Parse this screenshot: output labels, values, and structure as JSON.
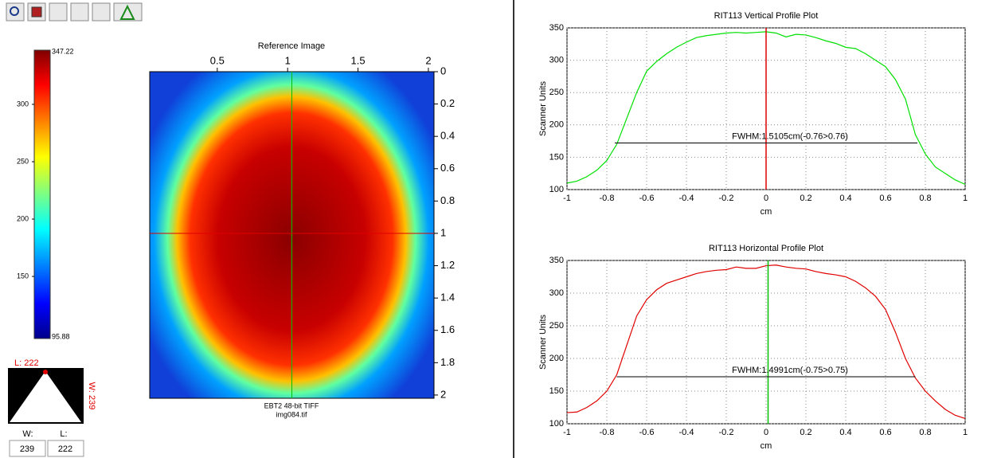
{
  "colorbar": {
    "lim": [
      95.88,
      347.22
    ],
    "ticks": [
      150,
      200,
      250,
      300
    ]
  },
  "window_level": {
    "level_label": "L: 222",
    "width_label": "W: 239",
    "w_caption": "W:",
    "l_caption": "L:",
    "w_value": "239",
    "l_value": "222"
  },
  "image": {
    "title": "Reference Image",
    "caption": "EBT2 48-bit TIFF",
    "filename": "img084.tif",
    "xlim": [
      0.02,
      2.04
    ],
    "ylim": [
      0,
      2.02
    ],
    "xticks": [
      0.5,
      1,
      1.5,
      2
    ],
    "yticks": [
      0,
      0.2,
      0.4,
      0.6,
      0.8,
      1,
      1.2,
      1.4,
      1.6,
      1.8,
      2
    ],
    "cursor_x": 1.03,
    "cursor_y": 1
  },
  "chart_data": [
    {
      "type": "line",
      "title": "RIT113 Vertical Profile Plot",
      "x_label": "cm",
      "y_label": "Scanner Units",
      "xlim": [
        -1,
        1
      ],
      "ylim": [
        100,
        350
      ],
      "xticks": [
        -1,
        -0.8,
        -0.6,
        -0.4,
        -0.2,
        0,
        0.2,
        0.4,
        0.6,
        0.8,
        1
      ],
      "yticks": [
        100,
        150,
        200,
        250,
        300,
        350
      ],
      "grid": true,
      "x": [
        -1,
        -0.95,
        -0.9,
        -0.85,
        -0.8,
        -0.75,
        -0.7,
        -0.65,
        -0.6,
        -0.55,
        -0.5,
        -0.45,
        -0.4,
        -0.35,
        -0.3,
        -0.25,
        -0.2,
        -0.15,
        -0.1,
        -0.05,
        0,
        0.05,
        0.1,
        0.15,
        0.2,
        0.25,
        0.3,
        0.35,
        0.4,
        0.45,
        0.5,
        0.55,
        0.6,
        0.65,
        0.7,
        0.75,
        0.8,
        0.85,
        0.9,
        0.95,
        1
      ],
      "series": [
        {
          "color": "#00e000",
          "values": [
            110,
            113,
            120,
            130,
            145,
            170,
            210,
            250,
            283,
            298,
            310,
            320,
            328,
            335,
            338,
            340,
            342,
            343,
            342,
            343,
            344,
            342,
            336,
            340,
            339,
            335,
            330,
            326,
            320,
            318,
            310,
            300,
            290,
            270,
            240,
            185,
            155,
            135,
            125,
            115,
            108
          ]
        }
      ],
      "cursor_x": 0,
      "cursor_color": "#e00000",
      "annotations": [
        {
          "text": "FWHM:1.5105cm(-0.76>0.76)",
          "x": [
            -0.76,
            0.76
          ],
          "y": 172
        }
      ]
    },
    {
      "type": "line",
      "title": "RIT113 Horizontal Profile Plot",
      "x_label": "cm",
      "y_label": "Scanner Units",
      "xlim": [
        -1,
        1
      ],
      "ylim": [
        100,
        350
      ],
      "xticks": [
        -1,
        -0.8,
        -0.6,
        -0.4,
        -0.2,
        0,
        0.2,
        0.4,
        0.6,
        0.8,
        1
      ],
      "yticks": [
        100,
        150,
        200,
        250,
        300,
        350
      ],
      "grid": true,
      "x": [
        -1,
        -0.95,
        -0.9,
        -0.85,
        -0.8,
        -0.75,
        -0.7,
        -0.65,
        -0.6,
        -0.55,
        -0.5,
        -0.45,
        -0.4,
        -0.35,
        -0.3,
        -0.25,
        -0.2,
        -0.15,
        -0.1,
        -0.05,
        0,
        0.05,
        0.1,
        0.15,
        0.2,
        0.25,
        0.3,
        0.35,
        0.4,
        0.45,
        0.5,
        0.55,
        0.6,
        0.65,
        0.7,
        0.75,
        0.8,
        0.85,
        0.9,
        0.95,
        1
      ],
      "series": [
        {
          "color": "#e00000",
          "values": [
            117,
            118,
            125,
            135,
            150,
            175,
            220,
            265,
            290,
            305,
            315,
            320,
            325,
            330,
            333,
            335,
            336,
            340,
            338,
            338,
            342,
            343,
            340,
            338,
            337,
            333,
            330,
            328,
            325,
            318,
            308,
            295,
            275,
            240,
            200,
            170,
            150,
            135,
            122,
            113,
            108
          ]
        }
      ],
      "cursor_x": 0.01,
      "cursor_color": "#00c000",
      "annotations": [
        {
          "text": "FWHM:1.4991cm(-0.75>0.75)",
          "x": [
            -0.75,
            0.75
          ],
          "y": 172
        }
      ]
    }
  ]
}
